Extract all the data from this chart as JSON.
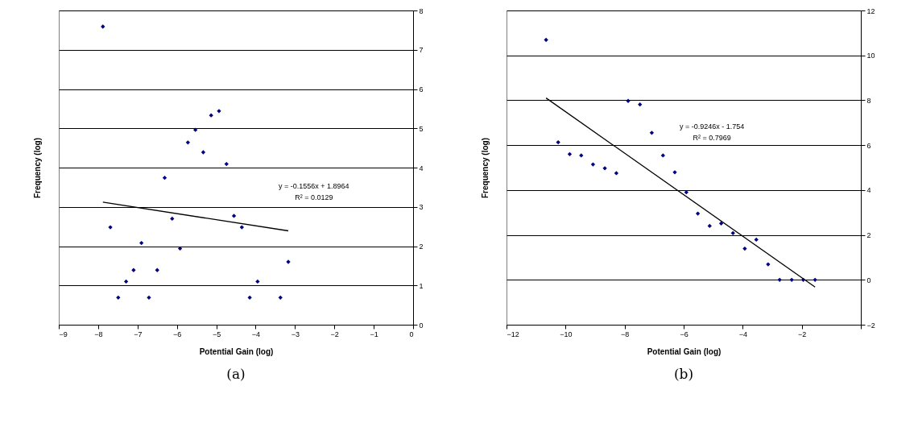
{
  "chart_data": [
    {
      "type": "scatter",
      "title": "(a)",
      "xlabel": "Potential Gain (log)",
      "ylabel": "Frequency (log)",
      "xlim": [
        -9,
        0
      ],
      "ylim": [
        0,
        8
      ],
      "xticks": [
        -9,
        -8,
        -7,
        -6,
        -5,
        -4,
        -3,
        -2,
        -1,
        0
      ],
      "yticks": [
        0,
        1,
        2,
        3,
        4,
        5,
        6,
        7,
        8
      ],
      "grid": "y",
      "marker": "diamond",
      "x": [
        -7.88,
        -5.13,
        -4.93,
        -5.53,
        -5.72,
        -5.33,
        -4.74,
        -6.31,
        -6.12,
        -4.55,
        -7.69,
        -4.35,
        -6.9,
        -5.92,
        -3.17,
        -7.1,
        -6.5,
        -7.29,
        -3.95,
        -7.49,
        -6.71,
        -4.15,
        -3.37
      ],
      "series": [
        {
          "color": "#000080",
          "values": [
            7.59,
            5.33,
            5.44,
            4.96,
            4.64,
            4.39,
            4.09,
            3.74,
            2.7,
            2.77,
            2.48,
            2.48,
            2.08,
            1.94,
            1.6,
            1.39,
            1.39,
            1.1,
            1.1,
            0.69,
            0.69,
            0.69,
            0.69
          ]
        },
        {
          "type": "line",
          "marker": "none",
          "color": "#000000",
          "x": [
            -7.88,
            -3.17
          ],
          "values": [
            3.12,
            2.39
          ]
        }
      ],
      "annotations": [
        "y = -0.1556x + 1.8964",
        "R² = 0.0129"
      ]
    },
    {
      "type": "scatter",
      "title": "(b)",
      "xlabel": "Potential Gain (log)",
      "ylabel": "Frequency (log)",
      "xlim": [
        -12,
        0
      ],
      "ylim": [
        -2,
        12
      ],
      "xticks": [
        -12,
        -10,
        -8,
        -6,
        -4,
        -2,
        {
          "value": 0,
          "label": null
        }
      ],
      "yticks": [
        -2,
        0,
        2,
        4,
        6,
        8,
        10,
        12
      ],
      "grid": "y",
      "marker": "diamond",
      "x": [
        -10.66,
        -7.88,
        -7.48,
        -7.08,
        -10.25,
        -9.86,
        -9.47,
        -6.7,
        -9.07,
        -8.67,
        -8.28,
        -6.3,
        -5.91,
        -5.52,
        -5.12,
        -4.73,
        -4.33,
        -3.93,
        -3.54,
        -3.14,
        -2.75,
        -2.34,
        -1.95,
        -1.55
      ],
      "series": [
        {
          "color": "#000080",
          "values": [
            10.69,
            7.97,
            7.81,
            6.55,
            6.13,
            5.6,
            5.54,
            5.54,
            5.14,
            4.97,
            4.75,
            4.79,
            3.9,
            2.95,
            2.4,
            2.51,
            2.08,
            1.39,
            1.79,
            0.69,
            0,
            0,
            0,
            0
          ]
        },
        {
          "type": "line",
          "marker": "none",
          "color": "#000000",
          "x": [
            -10.66,
            -1.55
          ],
          "values": [
            8.1,
            -0.32
          ]
        }
      ],
      "annotations": [
        "y = -0.9246x - 1.754",
        "R² = 0.7969"
      ]
    }
  ]
}
